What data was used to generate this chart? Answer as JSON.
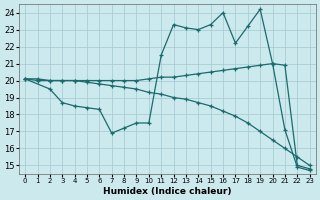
{
  "xlabel": "Humidex (Indice chaleur)",
  "bg_color": "#cce9ee",
  "grid_color": "#aacdd5",
  "line_color": "#1a6b6b",
  "xlim": [
    -0.5,
    23.5
  ],
  "ylim": [
    14.5,
    24.5
  ],
  "xticks": [
    0,
    1,
    2,
    3,
    4,
    5,
    6,
    7,
    8,
    9,
    10,
    11,
    12,
    13,
    14,
    15,
    16,
    17,
    18,
    19,
    20,
    21,
    22,
    23
  ],
  "yticks": [
    15,
    16,
    17,
    18,
    19,
    20,
    21,
    22,
    23,
    24
  ],
  "line1_x": [
    0,
    1,
    2,
    3,
    4,
    5,
    6,
    7,
    8,
    9,
    10,
    11,
    12,
    13,
    14,
    15,
    16,
    17,
    18,
    19,
    20,
    21,
    22,
    23
  ],
  "line1_y": [
    20.1,
    20.1,
    20.0,
    20.0,
    20.0,
    20.0,
    20.0,
    20.0,
    20.0,
    20.0,
    20.1,
    20.2,
    20.2,
    20.3,
    20.4,
    20.5,
    20.6,
    20.7,
    20.8,
    20.9,
    21.0,
    20.9,
    15.0,
    14.8
  ],
  "line2_x": [
    0,
    2,
    3,
    4,
    5,
    6,
    7,
    8,
    9,
    10,
    11,
    12,
    13,
    14,
    15,
    16,
    17,
    18,
    19,
    20,
    21,
    22,
    23
  ],
  "line2_y": [
    20.1,
    19.5,
    18.7,
    18.5,
    18.4,
    18.3,
    16.9,
    17.2,
    17.5,
    17.5,
    21.5,
    23.3,
    23.1,
    23.0,
    23.3,
    24.0,
    22.2,
    23.2,
    24.2,
    21.0,
    17.1,
    14.9,
    14.7
  ],
  "line3_x": [
    0,
    1,
    2,
    3,
    4,
    5,
    6,
    7,
    8,
    9,
    10,
    11,
    12,
    13,
    14,
    15,
    16,
    17,
    18,
    19,
    20,
    21,
    22,
    23
  ],
  "line3_y": [
    20.1,
    20.0,
    20.0,
    20.0,
    20.0,
    19.9,
    19.8,
    19.7,
    19.6,
    19.5,
    19.3,
    19.2,
    19.0,
    18.9,
    18.7,
    18.5,
    18.2,
    17.9,
    17.5,
    17.0,
    16.5,
    16.0,
    15.5,
    15.0
  ]
}
